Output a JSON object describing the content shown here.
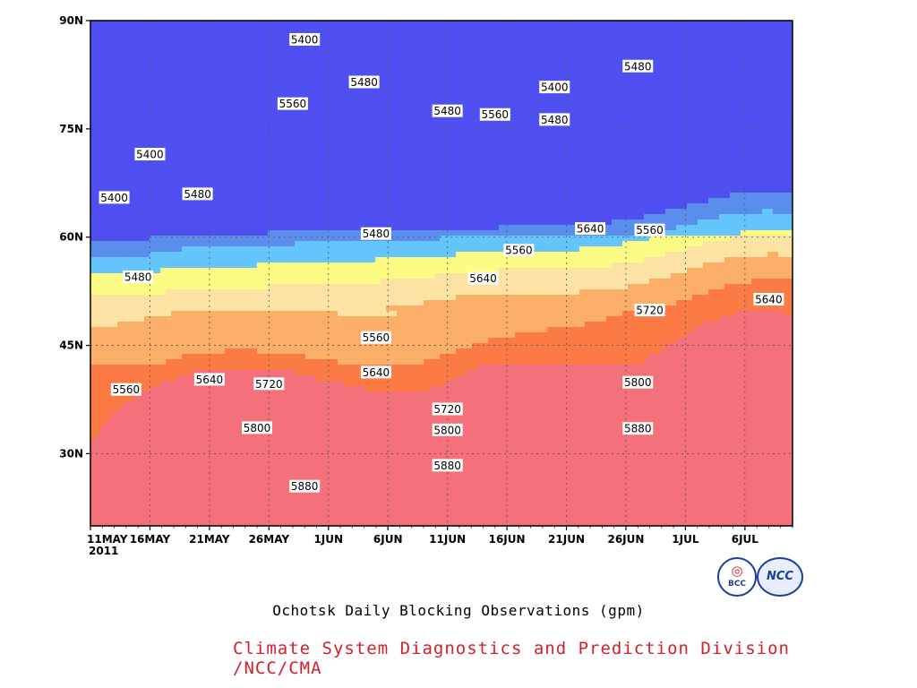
{
  "chart_data": {
    "type": "heatmap",
    "subtype": "filled-contour (time-latitude Hovmoller)",
    "title": "Ochotsk Daily Blocking Observations (gpm)",
    "year_label": "2011",
    "x": {
      "ticks": [
        "11MAY",
        "16MAY",
        "21MAY",
        "26MAY",
        "1JUN",
        "6JUN",
        "11JUN",
        "16JUN",
        "21JUN",
        "26JUN",
        "1JUL",
        "6JUL"
      ],
      "range": [
        "2011-05-11",
        "2011-07-09"
      ]
    },
    "y": {
      "ticks": [
        "90N",
        "75N",
        "60N",
        "45N",
        "30N"
      ],
      "range": [
        20,
        90
      ],
      "unit": "degrees N"
    },
    "grid": true,
    "levels": [
      5400,
      5480,
      5560,
      5640,
      5720,
      5800,
      5880
    ],
    "band_colors": [
      "#4f4ff2",
      "#5b8ded",
      "#64c5fd",
      "#fcfc84",
      "#fce3a4",
      "#fcaf69",
      "#fc7a44",
      "#f4707a",
      "#f03a4b"
    ],
    "contour_labels": [
      {
        "value": "5400",
        "date": "2011-05-29",
        "lat": 87.4
      },
      {
        "value": "5480",
        "date": "2011-06-03",
        "lat": 81.5
      },
      {
        "value": "5560",
        "date": "2011-05-28",
        "lat": 78.5
      },
      {
        "value": "5400",
        "date": "2011-05-16",
        "lat": 71.5
      },
      {
        "value": "5400",
        "date": "2011-05-13",
        "lat": 65.5
      },
      {
        "value": "5480",
        "date": "2011-05-20",
        "lat": 66.0
      },
      {
        "value": "5480",
        "date": "2011-05-15",
        "lat": 54.5
      },
      {
        "value": "5480",
        "date": "2011-06-04",
        "lat": 60.5
      },
      {
        "value": "5480",
        "date": "2011-06-10",
        "lat": 77.5
      },
      {
        "value": "5560",
        "date": "2011-06-14",
        "lat": 77.0
      },
      {
        "value": "5400",
        "date": "2011-06-19",
        "lat": 80.8
      },
      {
        "value": "5480",
        "date": "2011-06-19",
        "lat": 76.3
      },
      {
        "value": "5480",
        "date": "2011-06-26",
        "lat": 83.7
      },
      {
        "value": "5560",
        "date": "2011-06-16",
        "lat": 58.2
      },
      {
        "value": "5640",
        "date": "2011-06-22",
        "lat": 61.2
      },
      {
        "value": "5560",
        "date": "2011-06-27",
        "lat": 61.0
      },
      {
        "value": "5640",
        "date": "2011-06-13",
        "lat": 54.3
      },
      {
        "value": "5560",
        "date": "2011-06-04",
        "lat": 46.1
      },
      {
        "value": "5640",
        "date": "2011-06-04",
        "lat": 41.3
      },
      {
        "value": "5640",
        "date": "2011-07-07",
        "lat": 51.4
      },
      {
        "value": "5720",
        "date": "2011-06-27",
        "lat": 49.9
      },
      {
        "value": "5560",
        "date": "2011-05-14",
        "lat": 38.9
      },
      {
        "value": "5640",
        "date": "2011-05-21",
        "lat": 40.3
      },
      {
        "value": "5720",
        "date": "2011-05-26",
        "lat": 39.7
      },
      {
        "value": "5720",
        "date": "2011-06-10",
        "lat": 36.2
      },
      {
        "value": "5800",
        "date": "2011-06-26",
        "lat": 39.9
      },
      {
        "value": "5800",
        "date": "2011-05-25",
        "lat": 33.6
      },
      {
        "value": "5800",
        "date": "2011-06-10",
        "lat": 33.3
      },
      {
        "value": "5880",
        "date": "2011-06-26",
        "lat": 33.5
      },
      {
        "value": "5880",
        "date": "2011-06-10",
        "lat": 28.4
      },
      {
        "value": "5880",
        "date": "2011-05-29",
        "lat": 25.5
      }
    ]
  },
  "caption": {
    "title": "Ochotsk Daily Blocking Observations (gpm)",
    "credit": "Climate System Diagnostics and Prediction Division /NCC/CMA"
  },
  "logos": {
    "bcc": "BCC",
    "ncc": "NCC"
  }
}
